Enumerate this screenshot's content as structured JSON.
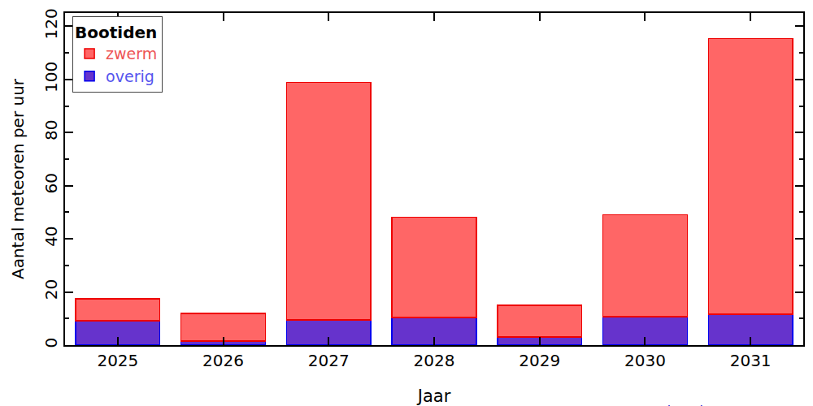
{
  "chart_data": {
    "type": "bar",
    "title": "Bootiden",
    "x_label": "Jaar",
    "y_label": "Aantal meteoren per uur",
    "categories": [
      "2025",
      "2026",
      "2027",
      "2028",
      "2029",
      "2030",
      "2031"
    ],
    "series": [
      {
        "name": "overig",
        "color": "#6633cc",
        "values": [
          9.2,
          1.5,
          9.5,
          10.4,
          3.0,
          10.7,
          11.6
        ]
      },
      {
        "name": "zwerm",
        "color": "#ff6666",
        "values": [
          8.2,
          10.4,
          89.4,
          37.7,
          12.0,
          38.3,
          103.8
        ]
      }
    ],
    "stacked": true,
    "ylim": [
      0,
      125
    ],
    "yticks": [
      0,
      20,
      40,
      60,
      80,
      100,
      120
    ],
    "grid": false,
    "legend": "top left",
    "annotations": [
      "hemel.waarnemen.com"
    ]
  }
}
